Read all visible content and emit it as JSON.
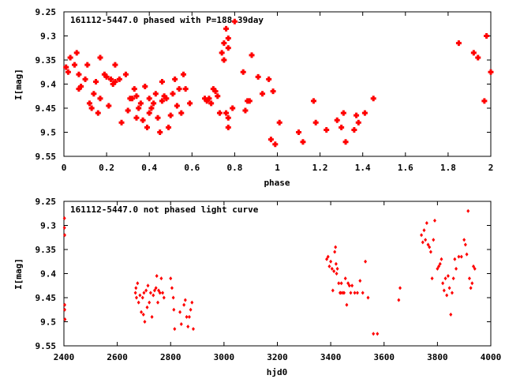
{
  "chart_data": [
    {
      "type": "scatter",
      "title": "161112-5447.0 phased with P=188.39day",
      "xlabel": "phase",
      "ylabel": "I[mag]",
      "xlim": [
        0,
        2
      ],
      "ylim": [
        9.55,
        9.25
      ],
      "y_inverted": true,
      "grid": false,
      "marker_color": "#ff0000",
      "marker": "filled-cross",
      "x_ticks": [
        "0",
        "0.2",
        "0.4",
        "0.6",
        "0.8",
        "1",
        "1.2",
        "1.4",
        "1.6",
        "1.8",
        "2"
      ],
      "y_ticks": [
        "9.25",
        "9.3",
        "9.35",
        "9.4",
        "9.45",
        "9.5",
        "9.55"
      ],
      "points": [
        [
          0.01,
          9.365
        ],
        [
          0.02,
          9.375
        ],
        [
          0.03,
          9.345
        ],
        [
          0.05,
          9.36
        ],
        [
          0.06,
          9.335
        ],
        [
          0.07,
          9.38
        ],
        [
          0.07,
          9.41
        ],
        [
          0.08,
          9.405
        ],
        [
          0.1,
          9.39
        ],
        [
          0.11,
          9.36
        ],
        [
          0.12,
          9.44
        ],
        [
          0.13,
          9.45
        ],
        [
          0.14,
          9.42
        ],
        [
          0.15,
          9.395
        ],
        [
          0.16,
          9.46
        ],
        [
          0.17,
          9.345
        ],
        [
          0.17,
          9.43
        ],
        [
          0.19,
          9.38
        ],
        [
          0.2,
          9.385
        ],
        [
          0.21,
          9.445
        ],
        [
          0.22,
          9.39
        ],
        [
          0.23,
          9.4
        ],
        [
          0.24,
          9.36
        ],
        [
          0.24,
          9.395
        ],
        [
          0.26,
          9.39
        ],
        [
          0.27,
          9.48
        ],
        [
          0.29,
          9.38
        ],
        [
          0.3,
          9.455
        ],
        [
          0.31,
          9.43
        ],
        [
          0.32,
          9.43
        ],
        [
          0.33,
          9.41
        ],
        [
          0.34,
          9.425
        ],
        [
          0.34,
          9.47
        ],
        [
          0.35,
          9.45
        ],
        [
          0.36,
          9.44
        ],
        [
          0.37,
          9.475
        ],
        [
          0.38,
          9.405
        ],
        [
          0.39,
          9.49
        ],
        [
          0.4,
          9.46
        ],
        [
          0.4,
          9.43
        ],
        [
          0.41,
          9.45
        ],
        [
          0.42,
          9.44
        ],
        [
          0.43,
          9.42
        ],
        [
          0.44,
          9.47
        ],
        [
          0.45,
          9.5
        ],
        [
          0.46,
          9.435
        ],
        [
          0.46,
          9.395
        ],
        [
          0.47,
          9.425
        ],
        [
          0.48,
          9.43
        ],
        [
          0.49,
          9.49
        ],
        [
          0.5,
          9.465
        ],
        [
          0.51,
          9.42
        ],
        [
          0.52,
          9.39
        ],
        [
          0.53,
          9.445
        ],
        [
          0.54,
          9.41
        ],
        [
          0.55,
          9.46
        ],
        [
          0.56,
          9.38
        ],
        [
          0.57,
          9.41
        ],
        [
          0.59,
          9.44
        ],
        [
          0.66,
          9.43
        ],
        [
          0.67,
          9.435
        ],
        [
          0.68,
          9.43
        ],
        [
          0.69,
          9.44
        ],
        [
          0.7,
          9.41
        ],
        [
          0.71,
          9.415
        ],
        [
          0.72,
          9.425
        ],
        [
          0.73,
          9.46
        ],
        [
          0.74,
          9.335
        ],
        [
          0.75,
          9.35
        ],
        [
          0.75,
          9.315
        ],
        [
          0.76,
          9.285
        ],
        [
          0.77,
          9.305
        ],
        [
          0.77,
          9.325
        ],
        [
          0.76,
          9.46
        ],
        [
          0.77,
          9.47
        ],
        [
          0.77,
          9.49
        ],
        [
          0.79,
          9.45
        ],
        [
          0.8,
          9.27
        ],
        [
          0.84,
          9.375
        ],
        [
          0.85,
          9.455
        ],
        [
          0.86,
          9.435
        ],
        [
          0.87,
          9.435
        ],
        [
          0.88,
          9.34
        ],
        [
          0.91,
          9.385
        ],
        [
          0.93,
          9.42
        ],
        [
          0.96,
          9.39
        ],
        [
          0.97,
          9.515
        ],
        [
          0.98,
          9.415
        ],
        [
          0.99,
          9.525
        ],
        [
          1.01,
          9.48
        ],
        [
          1.1,
          9.5
        ],
        [
          1.12,
          9.52
        ],
        [
          1.17,
          9.435
        ],
        [
          1.18,
          9.48
        ],
        [
          1.23,
          9.495
        ],
        [
          1.28,
          9.475
        ],
        [
          1.3,
          9.49
        ],
        [
          1.31,
          9.46
        ],
        [
          1.32,
          9.52
        ],
        [
          1.36,
          9.495
        ],
        [
          1.37,
          9.465
        ],
        [
          1.38,
          9.48
        ],
        [
          1.41,
          9.46
        ],
        [
          1.45,
          9.43
        ],
        [
          1.85,
          9.315
        ],
        [
          1.92,
          9.335
        ],
        [
          1.94,
          9.345
        ],
        [
          1.97,
          9.435
        ],
        [
          1.98,
          9.3
        ],
        [
          2.0,
          9.375
        ]
      ]
    },
    {
      "type": "scatter",
      "title": "161112-5447.0 not phased light curve",
      "xlabel": "hjd0",
      "ylabel": "I[mag]",
      "xlim": [
        2400,
        4000
      ],
      "ylim": [
        9.55,
        9.25
      ],
      "y_inverted": true,
      "grid": false,
      "marker_color": "#ff0000",
      "marker": "small-diamond",
      "x_ticks": [
        "2400",
        "2600",
        "2800",
        "3000",
        "3200",
        "3400",
        "3600",
        "3800",
        "4000"
      ],
      "y_ticks": [
        "9.25",
        "9.3",
        "9.35",
        "9.4",
        "9.45",
        "9.5",
        "9.55"
      ],
      "points": [
        [
          2402,
          9.285
        ],
        [
          2402,
          9.305
        ],
        [
          2403,
          9.32
        ],
        [
          2403,
          9.465
        ],
        [
          2403,
          9.475
        ],
        [
          2404,
          9.495
        ],
        [
          2668,
          9.44
        ],
        [
          2670,
          9.43
        ],
        [
          2672,
          9.45
        ],
        [
          2676,
          9.42
        ],
        [
          2680,
          9.46
        ],
        [
          2685,
          9.445
        ],
        [
          2690,
          9.48
        ],
        [
          2695,
          9.45
        ],
        [
          2698,
          9.485
        ],
        [
          2700,
          9.44
        ],
        [
          2703,
          9.5
        ],
        [
          2708,
          9.435
        ],
        [
          2712,
          9.47
        ],
        [
          2715,
          9.425
        ],
        [
          2720,
          9.46
        ],
        [
          2725,
          9.44
        ],
        [
          2730,
          9.49
        ],
        [
          2735,
          9.445
        ],
        [
          2740,
          9.435
        ],
        [
          2745,
          9.43
        ],
        [
          2748,
          9.405
        ],
        [
          2752,
          9.46
        ],
        [
          2755,
          9.435
        ],
        [
          2760,
          9.44
        ],
        [
          2765,
          9.41
        ],
        [
          2770,
          9.44
        ],
        [
          2775,
          9.45
        ],
        [
          2800,
          9.41
        ],
        [
          2805,
          9.43
        ],
        [
          2810,
          9.45
        ],
        [
          2812,
          9.475
        ],
        [
          2815,
          9.515
        ],
        [
          2835,
          9.48
        ],
        [
          2840,
          9.505
        ],
        [
          2850,
          9.465
        ],
        [
          2855,
          9.455
        ],
        [
          2860,
          9.49
        ],
        [
          2865,
          9.51
        ],
        [
          2870,
          9.49
        ],
        [
          2875,
          9.475
        ],
        [
          2880,
          9.46
        ],
        [
          2885,
          9.515
        ],
        [
          3385,
          9.37
        ],
        [
          3390,
          9.365
        ],
        [
          3395,
          9.385
        ],
        [
          3400,
          9.375
        ],
        [
          3405,
          9.39
        ],
        [
          3408,
          9.435
        ],
        [
          3412,
          9.395
        ],
        [
          3415,
          9.355
        ],
        [
          3418,
          9.345
        ],
        [
          3420,
          9.38
        ],
        [
          3422,
          9.4
        ],
        [
          3425,
          9.39
        ],
        [
          3430,
          9.42
        ],
        [
          3435,
          9.44
        ],
        [
          3438,
          9.44
        ],
        [
          3440,
          9.42
        ],
        [
          3445,
          9.44
        ],
        [
          3450,
          9.44
        ],
        [
          3455,
          9.41
        ],
        [
          3460,
          9.465
        ],
        [
          3465,
          9.42
        ],
        [
          3470,
          9.425
        ],
        [
          3475,
          9.44
        ],
        [
          3480,
          9.425
        ],
        [
          3490,
          9.44
        ],
        [
          3500,
          9.44
        ],
        [
          3510,
          9.415
        ],
        [
          3520,
          9.44
        ],
        [
          3530,
          9.375
        ],
        [
          3540,
          9.45
        ],
        [
          3560,
          9.525
        ],
        [
          3575,
          9.525
        ],
        [
          3655,
          9.455
        ],
        [
          3660,
          9.43
        ],
        [
          3740,
          9.32
        ],
        [
          3745,
          9.335
        ],
        [
          3750,
          9.31
        ],
        [
          3755,
          9.33
        ],
        [
          3760,
          9.295
        ],
        [
          3765,
          9.34
        ],
        [
          3770,
          9.345
        ],
        [
          3775,
          9.355
        ],
        [
          3780,
          9.41
        ],
        [
          3785,
          9.33
        ],
        [
          3790,
          9.29
        ],
        [
          3800,
          9.39
        ],
        [
          3805,
          9.385
        ],
        [
          3810,
          9.38
        ],
        [
          3815,
          9.37
        ],
        [
          3820,
          9.42
        ],
        [
          3825,
          9.435
        ],
        [
          3830,
          9.41
        ],
        [
          3835,
          9.445
        ],
        [
          3840,
          9.405
        ],
        [
          3845,
          9.43
        ],
        [
          3850,
          9.485
        ],
        [
          3855,
          9.44
        ],
        [
          3860,
          9.41
        ],
        [
          3865,
          9.37
        ],
        [
          3870,
          9.39
        ],
        [
          3880,
          9.365
        ],
        [
          3890,
          9.365
        ],
        [
          3900,
          9.33
        ],
        [
          3905,
          9.34
        ],
        [
          3910,
          9.36
        ],
        [
          3915,
          9.27
        ],
        [
          3920,
          9.41
        ],
        [
          3925,
          9.43
        ],
        [
          3930,
          9.42
        ],
        [
          3935,
          9.385
        ],
        [
          3940,
          9.39
        ]
      ]
    }
  ]
}
